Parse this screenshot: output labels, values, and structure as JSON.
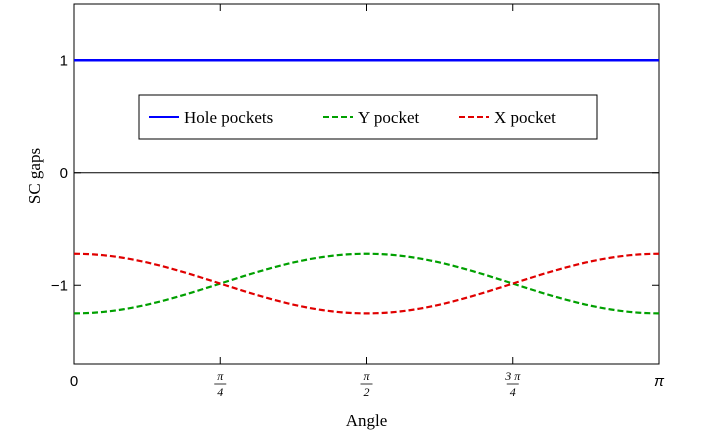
{
  "chart_data": {
    "type": "line",
    "xlabel": "Angle",
    "ylabel": "SC gaps",
    "xlim": [
      0,
      3.14159265
    ],
    "ylim": [
      -1.7,
      1.5
    ],
    "x_ticks": [
      {
        "value": 0,
        "label": "0"
      },
      {
        "value": 0.785398,
        "num": "π",
        "den": "4"
      },
      {
        "value": 1.570796,
        "num": "π",
        "den": "2"
      },
      {
        "value": 2.356194,
        "num": "3 π",
        "den": "4"
      },
      {
        "value": 3.141593,
        "label": "π"
      }
    ],
    "y_ticks": [
      {
        "value": 1,
        "label": "1"
      },
      {
        "value": 0,
        "label": "0"
      },
      {
        "value": -1,
        "label": "−1"
      }
    ],
    "zero_line": true,
    "legend_position": "upper-center",
    "series": [
      {
        "name": "Hole pockets",
        "color": "#0000ff",
        "style": "solid",
        "x": [
          0,
          0.3927,
          0.7854,
          1.1781,
          1.5708,
          1.9635,
          2.3562,
          2.7489,
          3.1416
        ],
        "y": [
          1,
          1,
          1,
          1,
          1,
          1,
          1,
          1,
          1
        ]
      },
      {
        "name": "Y pocket",
        "color": "#00a000",
        "style": "dashed",
        "x": [
          0,
          0.3927,
          0.7854,
          1.1781,
          1.5708,
          1.9635,
          2.3562,
          2.7489,
          3.1416
        ],
        "y": [
          -1.25,
          -1.172,
          -0.985,
          -0.798,
          -0.72,
          -0.798,
          -0.985,
          -1.172,
          -1.25
        ]
      },
      {
        "name": "X pocket",
        "color": "#e00000",
        "style": "dashed",
        "x": [
          0,
          0.3927,
          0.7854,
          1.1781,
          1.5708,
          1.9635,
          2.3562,
          2.7489,
          3.1416
        ],
        "y": [
          -0.72,
          -0.798,
          -0.985,
          -1.172,
          -1.25,
          -1.172,
          -0.985,
          -0.798,
          -0.72
        ]
      }
    ]
  }
}
